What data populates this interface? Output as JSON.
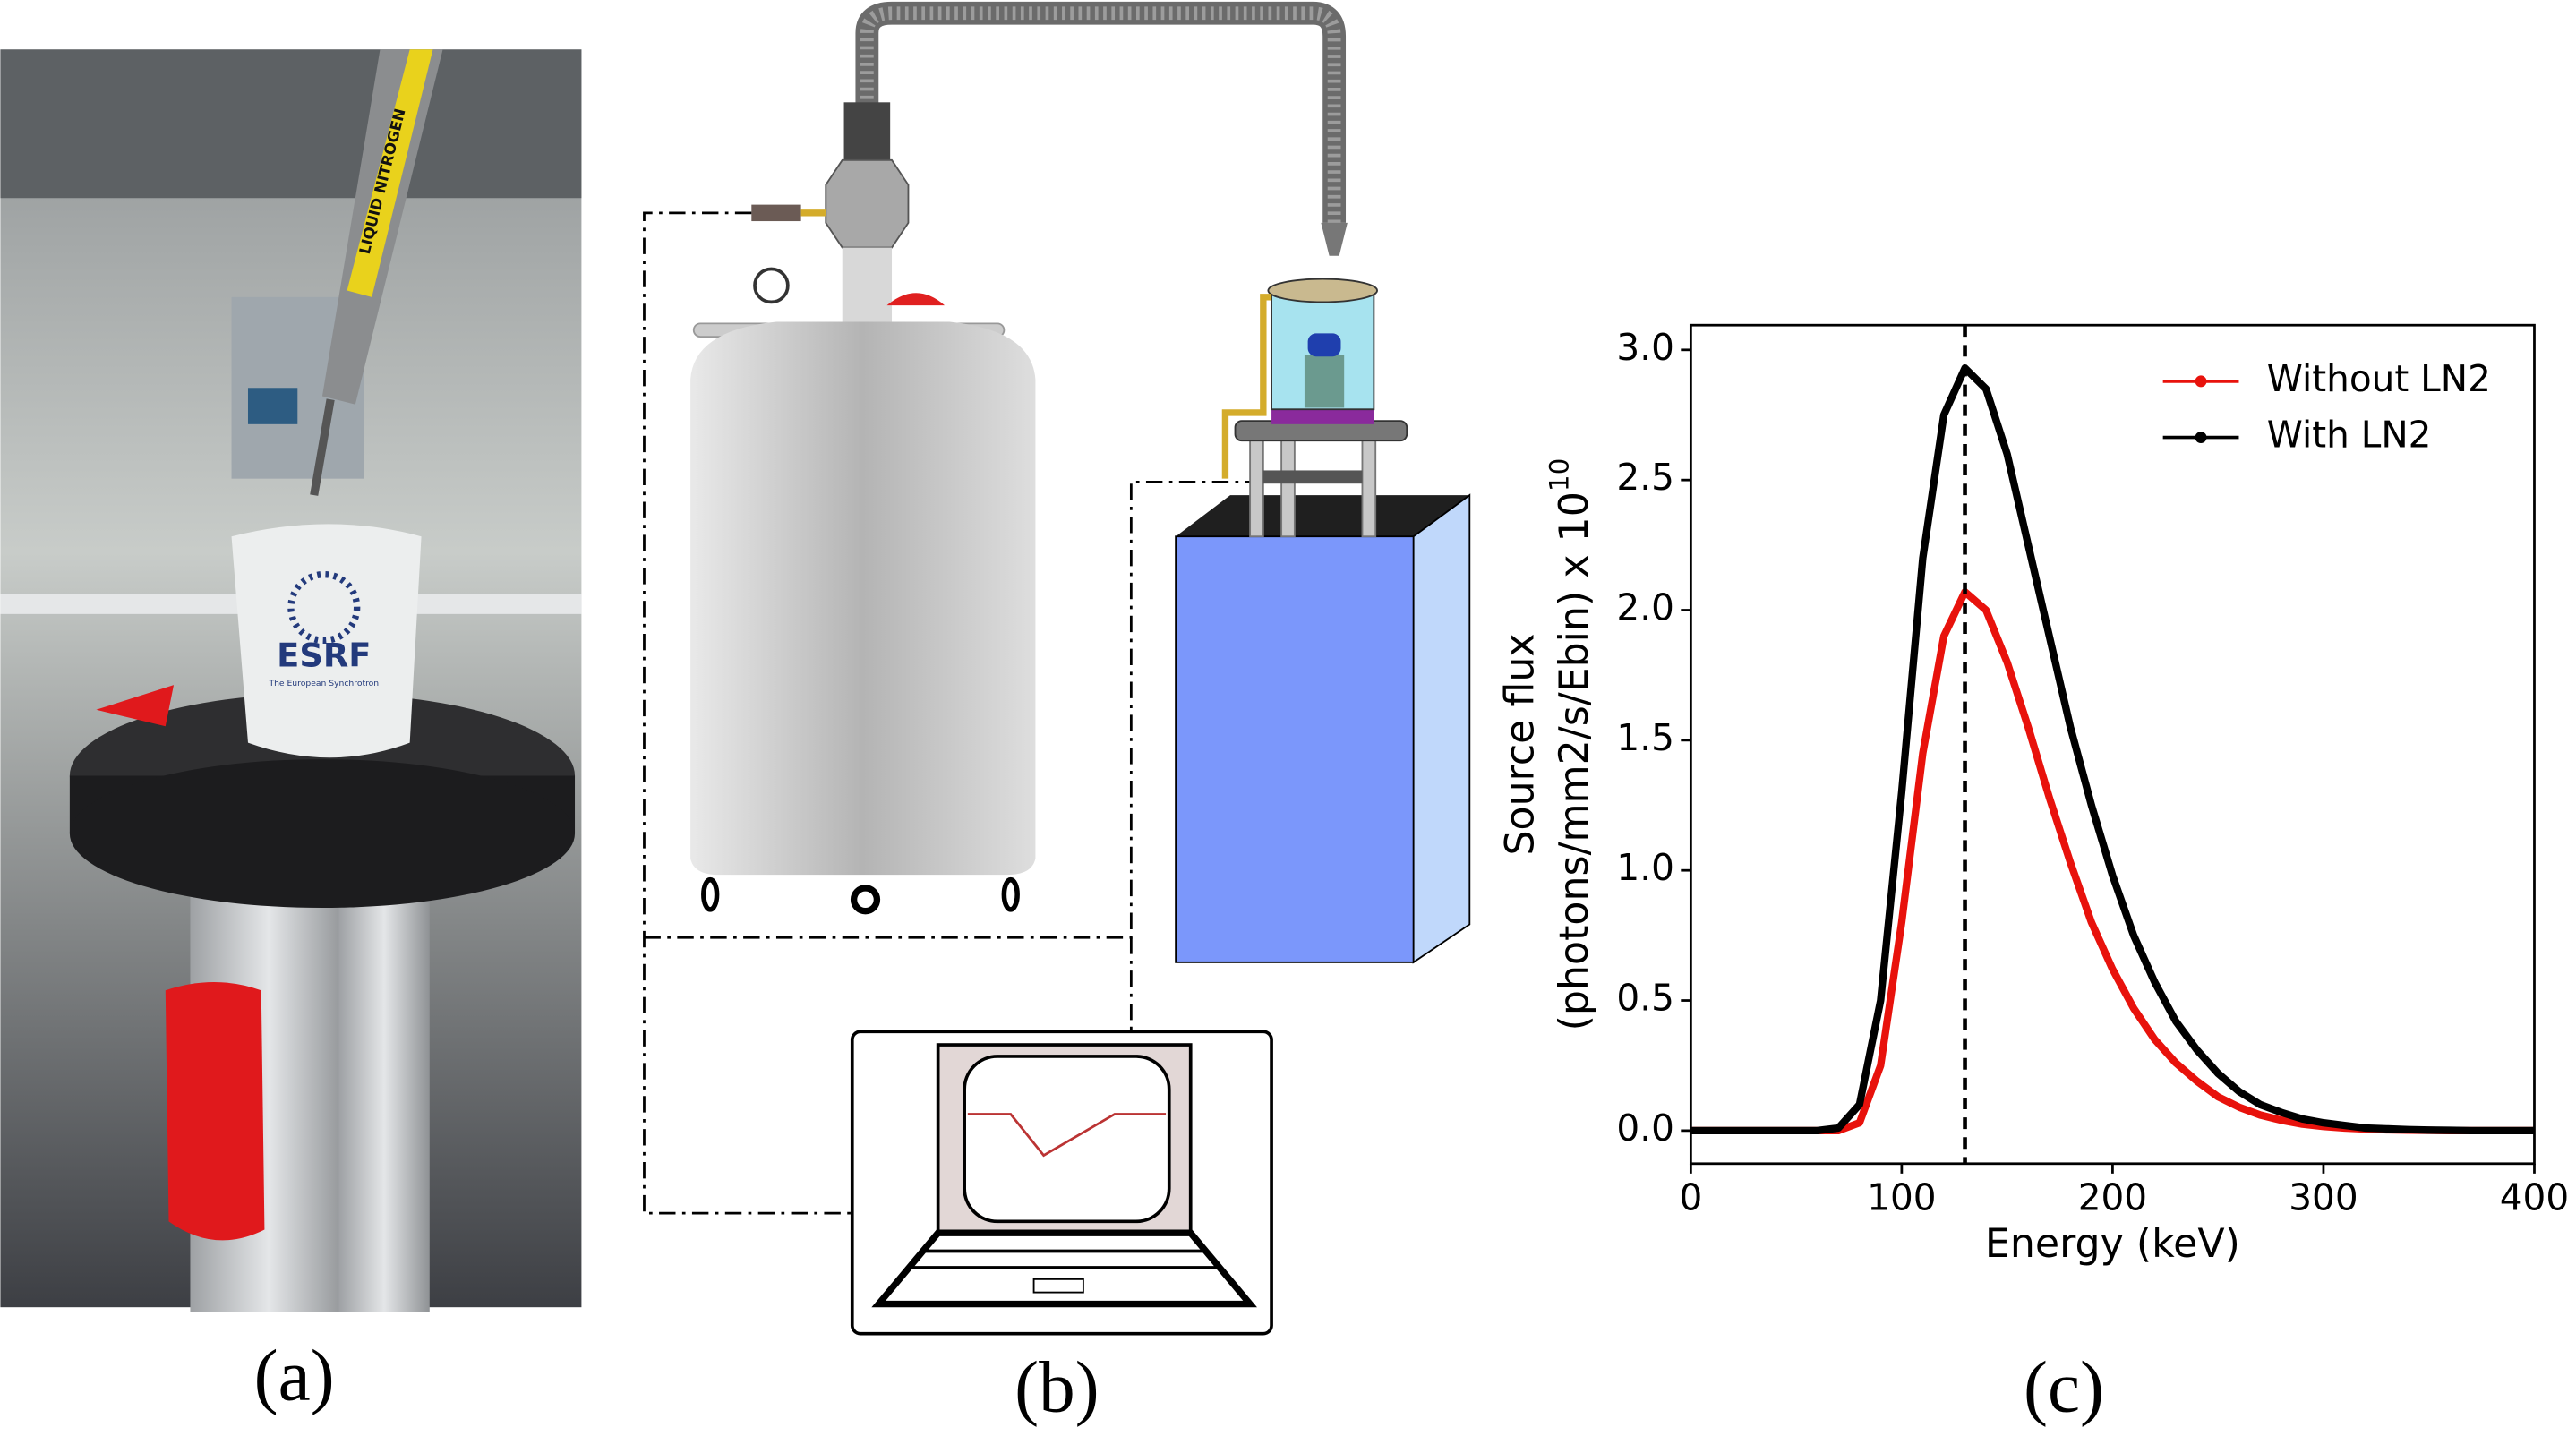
{
  "panels": {
    "a": "(a)",
    "b": "(b)",
    "c": "(c)"
  },
  "photo": {
    "cup_logo": "ESRF",
    "cup_subtitle": "The European Synchrotron",
    "tube_label": "LIQUID NITROGEN"
  },
  "chart_data": {
    "type": "line",
    "xlabel": "Energy (keV)",
    "ylabel_lines": [
      "Source flux",
      "(photons/mm2/s/Ebin) x 10"
    ],
    "ylabel_superscript": "10",
    "x": [
      0,
      10,
      20,
      30,
      40,
      50,
      60,
      70,
      80,
      90,
      100,
      110,
      120,
      130,
      140,
      150,
      160,
      170,
      180,
      190,
      200,
      210,
      220,
      230,
      240,
      250,
      260,
      270,
      280,
      290,
      300,
      310,
      320,
      330,
      340,
      350,
      360,
      370,
      380,
      390,
      400
    ],
    "series": [
      {
        "name": "Without LN2",
        "color": "#e8120c",
        "values": [
          0,
          0,
          0,
          0,
          0,
          0,
          0,
          0,
          0.03,
          0.25,
          0.8,
          1.45,
          1.9,
          2.07,
          2.0,
          1.8,
          1.55,
          1.28,
          1.03,
          0.8,
          0.62,
          0.47,
          0.35,
          0.26,
          0.19,
          0.13,
          0.09,
          0.06,
          0.04,
          0.025,
          0.016,
          0.01,
          0.006,
          0.003,
          0.002,
          0.001,
          0,
          0,
          0,
          0,
          0
        ]
      },
      {
        "name": "With LN2",
        "color": "#000000",
        "values": [
          0,
          0,
          0,
          0,
          0,
          0,
          0,
          0.01,
          0.1,
          0.5,
          1.3,
          2.2,
          2.75,
          2.93,
          2.85,
          2.6,
          2.25,
          1.9,
          1.55,
          1.25,
          0.98,
          0.75,
          0.57,
          0.42,
          0.31,
          0.22,
          0.15,
          0.1,
          0.07,
          0.045,
          0.03,
          0.02,
          0.01,
          0.007,
          0.004,
          0.002,
          0.001,
          0,
          0,
          0,
          0
        ]
      }
    ],
    "vline": 130,
    "xlim": [
      0,
      400
    ],
    "xticks": [
      0,
      100,
      200,
      300,
      400
    ],
    "ylim": [
      -0.127,
      3.095
    ],
    "yticks": [
      {
        "value": 0,
        "label": "0.0"
      },
      {
        "value": 0.5,
        "label": "0.5"
      },
      {
        "value": 1,
        "label": "1.0"
      },
      {
        "value": 1.5,
        "label": "1.5"
      },
      {
        "value": 2,
        "label": "2.0"
      },
      {
        "value": 2.5,
        "label": "2.5"
      },
      {
        "value": 3,
        "label": "3.0"
      }
    ],
    "legend": "upper right"
  }
}
